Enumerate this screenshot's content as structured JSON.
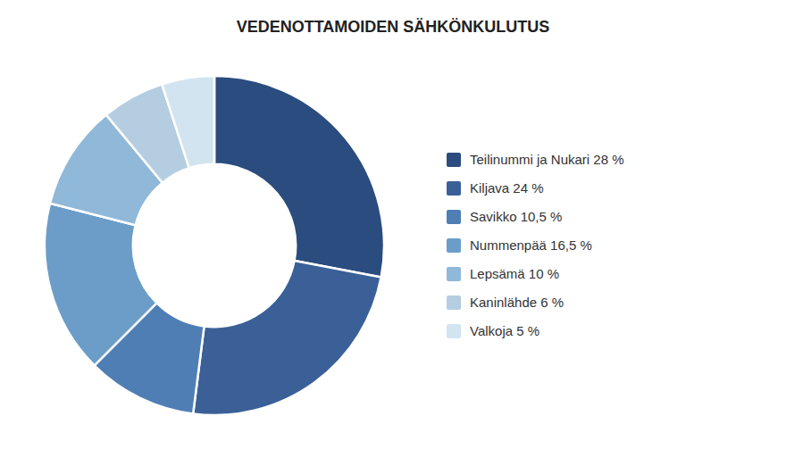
{
  "chart_data": {
    "type": "donut",
    "title": "VEDENOTTAMOIDEN SÄHKÖNKULUTUS",
    "categories": [
      "Teilinummi ja Nukari 28 %",
      "Kiljava 24 %",
      "Savikko 10,5 %",
      "Nummenpää 16,5 %",
      "Lepsämä 10 %",
      "Kaninlähde 6 %",
      "Valkoja 5 %"
    ],
    "values": [
      28,
      24,
      10.5,
      16.5,
      10,
      6,
      5
    ],
    "colors": [
      "#2B4C7E",
      "#3B6098",
      "#4F7EB5",
      "#6B9DC8",
      "#90B8D8",
      "#B5CDE0",
      "#D2E4EF"
    ],
    "legend": "right"
  }
}
